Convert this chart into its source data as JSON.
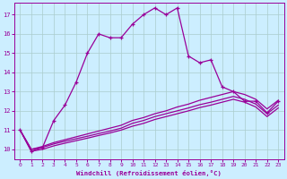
{
  "xlabel": "Windchill (Refroidissement éolien,°C)",
  "bg_color": "#cceeff",
  "line_color": "#990099",
  "grid_color": "#aacccc",
  "x_ticks": [
    0,
    1,
    2,
    3,
    4,
    5,
    6,
    7,
    8,
    9,
    10,
    11,
    12,
    13,
    14,
    15,
    16,
    17,
    18,
    19,
    20,
    21,
    22,
    23
  ],
  "y_ticks": [
    10,
    11,
    12,
    13,
    14,
    15,
    16,
    17
  ],
  "ylim": [
    9.5,
    17.6
  ],
  "xlim": [
    -0.5,
    23.5
  ],
  "line1_x": [
    0,
    1,
    2,
    3,
    4,
    5,
    6,
    7,
    8,
    9,
    10,
    11,
    12,
    13,
    14,
    15,
    16,
    17,
    18,
    19,
    20,
    21,
    22,
    23
  ],
  "line1_y": [
    11.0,
    9.9,
    10.1,
    11.5,
    12.3,
    13.5,
    15.0,
    16.0,
    15.8,
    15.8,
    16.5,
    17.0,
    17.35,
    17.0,
    17.35,
    14.85,
    14.5,
    14.65,
    13.25,
    13.0,
    12.5,
    12.5,
    11.9,
    12.5
  ],
  "line2_x": [
    0,
    1,
    2,
    3,
    4,
    5,
    6,
    7,
    8,
    9,
    10,
    11,
    12,
    13,
    14,
    15,
    16,
    17,
    18,
    19,
    20,
    21,
    22,
    23
  ],
  "line2_y": [
    11.0,
    10.0,
    10.15,
    10.35,
    10.5,
    10.65,
    10.8,
    10.95,
    11.1,
    11.25,
    11.5,
    11.65,
    11.85,
    12.0,
    12.2,
    12.35,
    12.55,
    12.7,
    12.85,
    13.0,
    12.85,
    12.6,
    12.1,
    12.55
  ],
  "line3_x": [
    0,
    1,
    2,
    3,
    4,
    5,
    6,
    7,
    8,
    9,
    10,
    11,
    12,
    13,
    14,
    15,
    16,
    17,
    18,
    19,
    20,
    21,
    22,
    23
  ],
  "line3_y": [
    11.0,
    10.0,
    10.1,
    10.28,
    10.42,
    10.55,
    10.68,
    10.82,
    10.95,
    11.1,
    11.35,
    11.5,
    11.7,
    11.85,
    12.0,
    12.15,
    12.32,
    12.45,
    12.6,
    12.75,
    12.6,
    12.35,
    11.85,
    12.3
  ],
  "line4_x": [
    0,
    1,
    2,
    3,
    4,
    5,
    6,
    7,
    8,
    9,
    10,
    11,
    12,
    13,
    14,
    15,
    16,
    17,
    18,
    19,
    20,
    21,
    22,
    23
  ],
  "line4_y": [
    11.0,
    9.9,
    10.0,
    10.18,
    10.32,
    10.45,
    10.58,
    10.72,
    10.85,
    11.0,
    11.2,
    11.35,
    11.55,
    11.7,
    11.85,
    12.0,
    12.17,
    12.3,
    12.45,
    12.6,
    12.45,
    12.2,
    11.7,
    12.15
  ]
}
